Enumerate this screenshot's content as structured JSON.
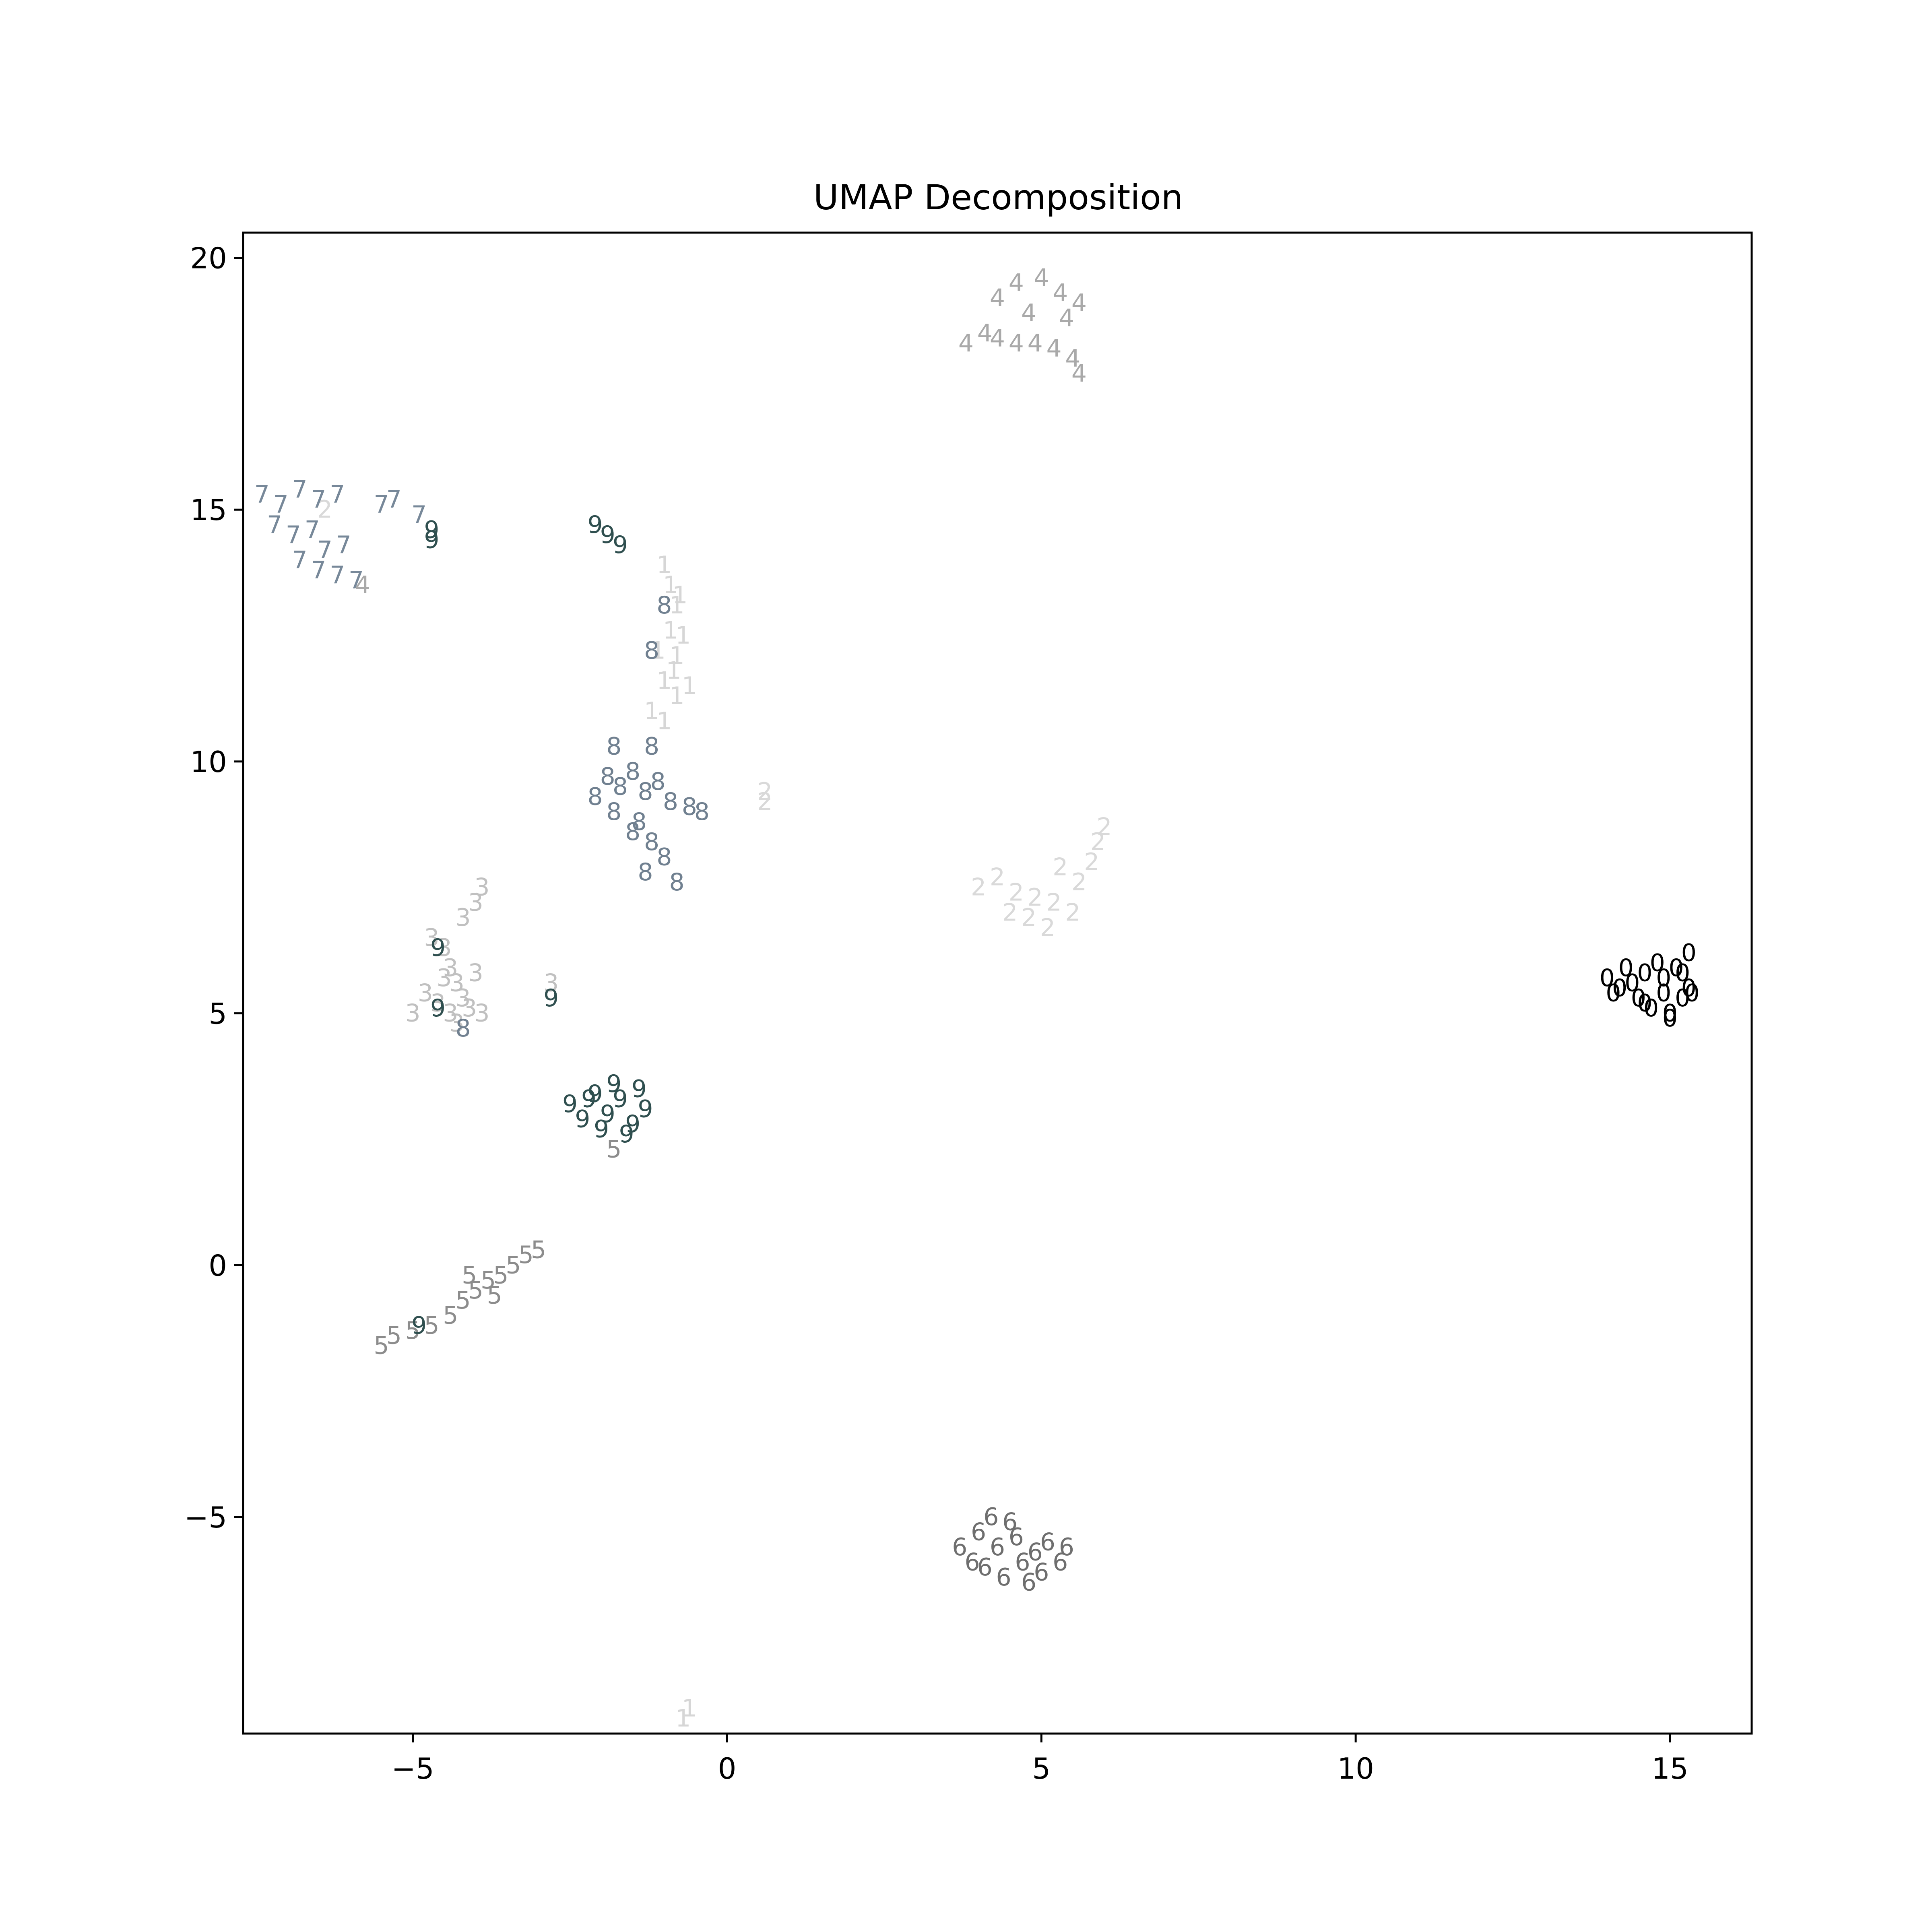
{
  "chart_data": {
    "type": "scatter",
    "title": "UMAP Decomposition",
    "xlabel": "",
    "ylabel": "",
    "xlim": [
      -7.7,
      16.3
    ],
    "ylim": [
      -9.3,
      20.5
    ],
    "grid": false,
    "x_ticks": [
      {
        "value": -5,
        "label": "−5"
      },
      {
        "value": 0,
        "label": "0"
      },
      {
        "value": 5,
        "label": "5"
      },
      {
        "value": 10,
        "label": "10"
      },
      {
        "value": 15,
        "label": "15"
      }
    ],
    "y_ticks": [
      {
        "value": -5,
        "label": "−5"
      },
      {
        "value": 0,
        "label": "0"
      },
      {
        "value": 5,
        "label": "5"
      },
      {
        "value": 10,
        "label": "10"
      },
      {
        "value": 15,
        "label": "15"
      },
      {
        "value": 20,
        "label": "20"
      }
    ],
    "marker": "digit label text",
    "series": [
      {
        "label": "0",
        "color": "#000000",
        "points": [
          [
            14.0,
            5.7
          ],
          [
            14.2,
            5.5
          ],
          [
            14.3,
            5.9
          ],
          [
            14.5,
            5.3
          ],
          [
            14.6,
            5.8
          ],
          [
            14.7,
            5.1
          ],
          [
            14.8,
            6.0
          ],
          [
            14.9,
            5.4
          ],
          [
            15.0,
            5.0
          ],
          [
            15.1,
            5.9
          ],
          [
            15.2,
            5.3
          ],
          [
            15.3,
            6.2
          ],
          [
            15.3,
            5.5
          ],
          [
            14.4,
            5.6
          ],
          [
            14.9,
            5.7
          ],
          [
            15.0,
            4.9
          ],
          [
            14.6,
            5.2
          ],
          [
            15.2,
            5.8
          ],
          [
            14.1,
            5.4
          ],
          [
            15.35,
            5.4
          ]
        ]
      },
      {
        "label": "1",
        "color": "#d6d6d6",
        "points": [
          [
            -1.0,
            13.9
          ],
          [
            -0.9,
            13.5
          ],
          [
            -0.8,
            13.1
          ],
          [
            -0.9,
            12.6
          ],
          [
            -0.8,
            12.1
          ],
          [
            -1.0,
            11.6
          ],
          [
            -0.8,
            11.3
          ],
          [
            -1.2,
            11.0
          ],
          [
            -1.0,
            10.8
          ],
          [
            -0.6,
            11.5
          ],
          [
            -0.7,
            12.5
          ],
          [
            -1.1,
            12.2
          ],
          [
            -0.85,
            11.8
          ],
          [
            -0.75,
            13.3
          ],
          [
            -0.7,
            -9.0
          ],
          [
            -0.6,
            -8.8
          ]
        ]
      },
      {
        "label": "2",
        "color": "#d9d9d9",
        "points": [
          [
            4.0,
            7.5
          ],
          [
            4.3,
            7.7
          ],
          [
            4.6,
            7.4
          ],
          [
            4.9,
            7.3
          ],
          [
            5.2,
            7.2
          ],
          [
            5.5,
            7.0
          ],
          [
            4.8,
            6.9
          ],
          [
            5.1,
            6.7
          ],
          [
            5.6,
            7.6
          ],
          [
            5.8,
            8.0
          ],
          [
            5.9,
            8.4
          ],
          [
            6.0,
            8.7
          ],
          [
            4.5,
            7.0
          ],
          [
            5.3,
            7.9
          ],
          [
            0.6,
            9.4
          ],
          [
            0.6,
            9.2
          ],
          [
            -6.4,
            15.0
          ]
        ]
      },
      {
        "label": "3",
        "color": "#c0c0c0",
        "points": [
          [
            -4.7,
            6.5
          ],
          [
            -4.5,
            6.3
          ],
          [
            -4.4,
            5.9
          ],
          [
            -4.3,
            5.6
          ],
          [
            -4.2,
            5.3
          ],
          [
            -4.4,
            5.0
          ],
          [
            -4.6,
            5.2
          ],
          [
            -4.8,
            5.4
          ],
          [
            -4.0,
            5.8
          ],
          [
            -4.1,
            5.1
          ],
          [
            -3.9,
            5.0
          ],
          [
            -4.3,
            4.8
          ],
          [
            -3.9,
            7.5
          ],
          [
            -4.0,
            7.2
          ],
          [
            -4.2,
            6.9
          ],
          [
            -5.0,
            5.0
          ],
          [
            -2.8,
            5.6
          ],
          [
            -4.5,
            5.7
          ]
        ]
      },
      {
        "label": "4",
        "color": "#a9a9a9",
        "points": [
          [
            3.8,
            18.3
          ],
          [
            4.1,
            18.5
          ],
          [
            4.3,
            18.4
          ],
          [
            4.6,
            18.3
          ],
          [
            4.9,
            18.3
          ],
          [
            5.2,
            18.2
          ],
          [
            5.5,
            18.0
          ],
          [
            5.6,
            17.7
          ],
          [
            4.3,
            19.2
          ],
          [
            4.6,
            19.5
          ],
          [
            4.8,
            18.9
          ],
          [
            5.0,
            19.6
          ],
          [
            5.3,
            19.3
          ],
          [
            5.6,
            19.1
          ],
          [
            5.4,
            18.8
          ],
          [
            -5.8,
            13.5
          ]
        ]
      },
      {
        "label": "5",
        "color": "#8c8c8c",
        "points": [
          [
            -5.5,
            -1.6
          ],
          [
            -5.3,
            -1.4
          ],
          [
            -5.0,
            -1.3
          ],
          [
            -4.7,
            -1.2
          ],
          [
            -4.4,
            -1.0
          ],
          [
            -4.2,
            -0.7
          ],
          [
            -4.0,
            -0.5
          ],
          [
            -3.8,
            -0.3
          ],
          [
            -3.6,
            -0.2
          ],
          [
            -3.4,
            0.0
          ],
          [
            -3.2,
            0.2
          ],
          [
            -3.0,
            0.3
          ],
          [
            -4.1,
            -0.2
          ],
          [
            -3.7,
            -0.6
          ],
          [
            -1.8,
            2.3
          ]
        ]
      },
      {
        "label": "6",
        "color": "#6e6e6e",
        "points": [
          [
            3.7,
            -5.6
          ],
          [
            3.9,
            -5.9
          ],
          [
            4.0,
            -5.3
          ],
          [
            4.1,
            -6.0
          ],
          [
            4.3,
            -5.6
          ],
          [
            4.4,
            -6.2
          ],
          [
            4.6,
            -5.4
          ],
          [
            4.7,
            -5.9
          ],
          [
            4.9,
            -5.7
          ],
          [
            5.1,
            -5.5
          ],
          [
            5.3,
            -5.9
          ],
          [
            5.4,
            -5.6
          ],
          [
            4.2,
            -5.0
          ],
          [
            4.5,
            -5.1
          ],
          [
            5.0,
            -6.1
          ],
          [
            4.8,
            -6.3
          ]
        ]
      },
      {
        "label": "7",
        "color": "#778899",
        "points": [
          [
            -7.4,
            15.3
          ],
          [
            -7.1,
            15.1
          ],
          [
            -6.8,
            15.4
          ],
          [
            -6.5,
            15.2
          ],
          [
            -6.2,
            15.3
          ],
          [
            -7.2,
            14.7
          ],
          [
            -6.9,
            14.5
          ],
          [
            -6.6,
            14.6
          ],
          [
            -6.4,
            14.2
          ],
          [
            -6.1,
            14.3
          ],
          [
            -6.8,
            14.0
          ],
          [
            -6.5,
            13.8
          ],
          [
            -6.2,
            13.7
          ],
          [
            -5.9,
            13.6
          ],
          [
            -5.5,
            15.1
          ],
          [
            -5.3,
            15.2
          ],
          [
            -4.9,
            14.9
          ]
        ]
      },
      {
        "label": "8",
        "color": "#708090",
        "points": [
          [
            -2.1,
            9.3
          ],
          [
            -1.9,
            9.7
          ],
          [
            -1.7,
            9.5
          ],
          [
            -1.5,
            9.8
          ],
          [
            -1.3,
            9.4
          ],
          [
            -1.1,
            9.6
          ],
          [
            -0.9,
            9.2
          ],
          [
            -0.6,
            9.1
          ],
          [
            -0.4,
            9.0
          ],
          [
            -1.8,
            9.0
          ],
          [
            -1.4,
            8.8
          ],
          [
            -1.2,
            8.4
          ],
          [
            -1.0,
            8.1
          ],
          [
            -1.3,
            7.8
          ],
          [
            -0.8,
            7.6
          ],
          [
            -1.5,
            8.6
          ],
          [
            -1.8,
            10.3
          ],
          [
            -1.2,
            10.3
          ],
          [
            -1.2,
            12.2
          ],
          [
            -1.0,
            13.1
          ],
          [
            -4.2,
            4.7
          ]
        ]
      },
      {
        "label": "9",
        "color": "#2f4f4f",
        "points": [
          [
            -2.5,
            3.2
          ],
          [
            -2.3,
            2.9
          ],
          [
            -2.1,
            3.4
          ],
          [
            -1.9,
            3.0
          ],
          [
            -1.7,
            3.3
          ],
          [
            -1.5,
            2.8
          ],
          [
            -1.3,
            3.1
          ],
          [
            -1.4,
            3.5
          ],
          [
            -2.0,
            2.7
          ],
          [
            -1.6,
            2.6
          ],
          [
            -2.2,
            3.3
          ],
          [
            -1.8,
            3.6
          ],
          [
            -4.7,
            14.6
          ],
          [
            -4.7,
            14.4
          ],
          [
            -2.1,
            14.7
          ],
          [
            -1.9,
            14.5
          ],
          [
            -1.7,
            14.3
          ],
          [
            -4.6,
            6.3
          ],
          [
            -4.6,
            5.1
          ],
          [
            -2.8,
            5.3
          ],
          [
            -4.9,
            -1.2
          ]
        ]
      }
    ]
  }
}
